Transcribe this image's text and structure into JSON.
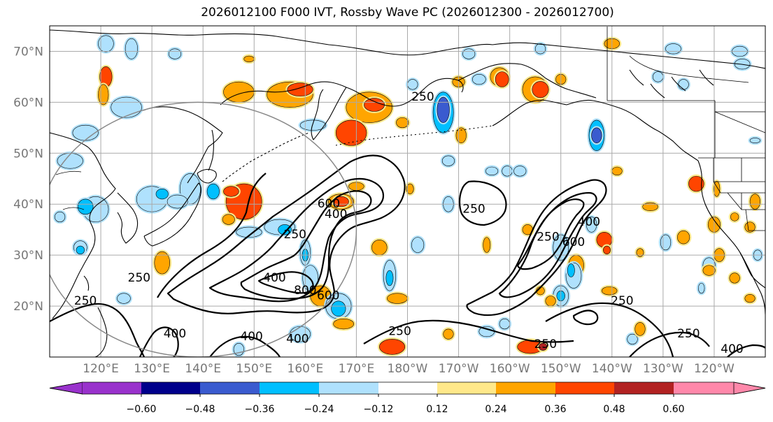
{
  "title": "2026012100 F000 IVT, Rossby Wave PC (2026012300 - 2026012700)",
  "colors": {
    "land_line": "#000000",
    "grid_line": "#aaaaaa",
    "circle_line": "#888888",
    "contour_line": "#000000"
  },
  "map": {
    "lon_range": [
      110,
      250
    ],
    "lat_range": [
      10,
      75
    ],
    "lat_ticks": [
      {
        "value": 20,
        "label": "20°N"
      },
      {
        "value": 30,
        "label": "30°N"
      },
      {
        "value": 40,
        "label": "40°N"
      },
      {
        "value": 50,
        "label": "50°N"
      },
      {
        "value": 60,
        "label": "60°N"
      },
      {
        "value": 70,
        "label": "70°N"
      }
    ],
    "lon_ticks": [
      {
        "value": 120,
        "label": "120°E"
      },
      {
        "value": 130,
        "label": "130°E"
      },
      {
        "value": 140,
        "label": "140°E"
      },
      {
        "value": 150,
        "label": "150°E"
      },
      {
        "value": 160,
        "label": "160°E"
      },
      {
        "value": 170,
        "label": "170°E"
      },
      {
        "value": 180,
        "label": "180°W"
      },
      {
        "value": 190,
        "label": "170°W"
      },
      {
        "value": 200,
        "label": "160°W"
      },
      {
        "value": 210,
        "label": "150°W"
      },
      {
        "value": 220,
        "label": "140°W"
      },
      {
        "value": 230,
        "label": "130°W"
      },
      {
        "value": 240,
        "label": "120°W"
      }
    ],
    "region_circle": {
      "center_lon": 139,
      "center_lat": 35,
      "radius_deg_lon": 31,
      "radius_deg_lat": 25
    }
  },
  "ivt_contours": {
    "levels": [
      "250",
      "400",
      "600",
      "800"
    ],
    "labels": [
      {
        "text": "250",
        "lon": 183.0,
        "lat": 61.0
      },
      {
        "text": "600",
        "lon": 164.6,
        "lat": 40.0
      },
      {
        "text": "400",
        "lon": 166.0,
        "lat": 38.0
      },
      {
        "text": "250",
        "lon": 158.0,
        "lat": 34.0
      },
      {
        "text": "250",
        "lon": 193.0,
        "lat": 39.0
      },
      {
        "text": "400",
        "lon": 154.0,
        "lat": 25.5
      },
      {
        "text": "800",
        "lon": 160.0,
        "lat": 23.0
      },
      {
        "text": "600",
        "lon": 164.5,
        "lat": 22.0
      },
      {
        "text": "250",
        "lon": 127.5,
        "lat": 25.5
      },
      {
        "text": "250",
        "lon": 117.0,
        "lat": 21.0
      },
      {
        "text": "400",
        "lon": 134.5,
        "lat": 14.5
      },
      {
        "text": "400",
        "lon": 149.5,
        "lat": 14.0
      },
      {
        "text": "400",
        "lon": 158.5,
        "lat": 13.5
      },
      {
        "text": "250",
        "lon": 178.5,
        "lat": 15.0
      },
      {
        "text": "250",
        "lon": 207.0,
        "lat": 12.5
      },
      {
        "text": "250",
        "lon": 222.0,
        "lat": 21.0
      },
      {
        "text": "250",
        "lon": 235.0,
        "lat": 14.5
      },
      {
        "text": "400",
        "lon": 243.5,
        "lat": 11.5
      },
      {
        "text": "250",
        "lon": 207.5,
        "lat": 33.5
      },
      {
        "text": "600",
        "lon": 212.5,
        "lat": 32.5
      },
      {
        "text": "400",
        "lon": 215.5,
        "lat": 36.5
      }
    ]
  },
  "colorbar": {
    "colors": [
      "#9932cc",
      "#00008b",
      "#3a5bcf",
      "#00bfff",
      "#afe1fd",
      "#ffffff",
      "#ffe88a",
      "#ffa500",
      "#ff4500",
      "#b22222",
      "#ff88aa"
    ],
    "boundaries": [
      "−0.60",
      "−0.48",
      "−0.36",
      "−0.24",
      "−0.12",
      "0.12",
      "0.24",
      "0.36",
      "0.48",
      "0.60"
    ]
  },
  "anomaly_blobs": [
    {
      "lon": 121,
      "lat": 71.5,
      "level": -1,
      "r": 1.5,
      "s": 1.6
    },
    {
      "lon": 126,
      "lat": 70.5,
      "level": -1,
      "r": 1.2,
      "s": 2
    },
    {
      "lon": 121,
      "lat": 65,
      "level": 3,
      "r": 1.2,
      "s": 2
    },
    {
      "lon": 120.5,
      "lat": 61.5,
      "level": 2,
      "r": 1.0,
      "s": 2
    },
    {
      "lon": 134.5,
      "lat": 69.5,
      "level": -1,
      "r": 1.2,
      "s": 1
    },
    {
      "lon": 147,
      "lat": 62,
      "level": 2,
      "r": 3,
      "s": 2
    },
    {
      "lon": 157,
      "lat": 61.5,
      "level": 2,
      "r": 4.5,
      "s": 2.5
    },
    {
      "lon": 159,
      "lat": 62.5,
      "level": 3,
      "r": 2.5,
      "s": 1.3
    },
    {
      "lon": 172.5,
      "lat": 59,
      "level": 2,
      "r": 4.5,
      "s": 3
    },
    {
      "lon": 173.5,
      "lat": 59.5,
      "level": 3,
      "r": 2,
      "s": 1.3
    },
    {
      "lon": 169,
      "lat": 54,
      "level": 3,
      "r": 3,
      "s": 2.5
    },
    {
      "lon": 179,
      "lat": 56,
      "level": 2,
      "r": 1.2,
      "s": 1
    },
    {
      "lon": 161.5,
      "lat": 55.5,
      "level": -1,
      "r": 2.5,
      "s": 1
    },
    {
      "lon": 187,
      "lat": 58,
      "level": -2,
      "r": 2,
      "s": 4
    },
    {
      "lon": 187,
      "lat": 58.5,
      "level": -3,
      "r": 1.2,
      "s": 2.5
    },
    {
      "lon": 181,
      "lat": 63.5,
      "level": -1,
      "r": 1,
      "s": 1
    },
    {
      "lon": 190,
      "lat": 64,
      "level": 2,
      "r": 1.2,
      "s": 1
    },
    {
      "lon": 198,
      "lat": 65,
      "level": 2,
      "r": 1.8,
      "s": 1.8
    },
    {
      "lon": 198.5,
      "lat": 64.5,
      "level": 3,
      "r": 1.3,
      "s": 1.5
    },
    {
      "lon": 194,
      "lat": 64.5,
      "level": -1,
      "r": 1.3,
      "s": 1
    },
    {
      "lon": 205,
      "lat": 62.5,
      "level": 2,
      "r": 2.5,
      "s": 2.5
    },
    {
      "lon": 206,
      "lat": 62.5,
      "level": 3,
      "r": 1.6,
      "s": 1.6
    },
    {
      "lon": 210,
      "lat": 64.5,
      "level": 2,
      "r": 1,
      "s": 1
    },
    {
      "lon": 206,
      "lat": 70.5,
      "level": -1,
      "r": 1,
      "s": 1
    },
    {
      "lon": 192,
      "lat": 69.5,
      "level": -1,
      "r": 1.2,
      "s": 1
    },
    {
      "lon": 190.5,
      "lat": 53.5,
      "level": 2,
      "r": 1,
      "s": 1.5
    },
    {
      "lon": 188,
      "lat": 48.5,
      "level": -1,
      "r": 1.2,
      "s": 1
    },
    {
      "lon": 217,
      "lat": 53.5,
      "level": -2,
      "r": 1.5,
      "s": 3
    },
    {
      "lon": 217,
      "lat": 53.5,
      "level": -3,
      "r": 1,
      "s": 1.5
    },
    {
      "lon": 229,
      "lat": 65,
      "level": -1,
      "r": 1,
      "s": 1
    },
    {
      "lon": 234,
      "lat": 63.5,
      "level": -1,
      "r": 1,
      "s": 1
    },
    {
      "lon": 125,
      "lat": 59,
      "level": -1,
      "r": 3,
      "s": 2
    },
    {
      "lon": 117,
      "lat": 54,
      "level": -1,
      "r": 2.5,
      "s": 1.5
    },
    {
      "lon": 114,
      "lat": 48.5,
      "level": -1,
      "r": 2.5,
      "s": 1.5
    },
    {
      "lon": 130,
      "lat": 41,
      "level": -1,
      "r": 3,
      "s": 2.5
    },
    {
      "lon": 132,
      "lat": 42,
      "level": -2,
      "r": 1.2,
      "s": 1
    },
    {
      "lon": 119,
      "lat": 39,
      "level": -1,
      "r": 2.5,
      "s": 2.5
    },
    {
      "lon": 117,
      "lat": 39.5,
      "level": -2,
      "r": 1.5,
      "s": 1.5
    },
    {
      "lon": 137.5,
      "lat": 43,
      "level": -1,
      "r": 2,
      "s": 3
    },
    {
      "lon": 135,
      "lat": 40.5,
      "level": -1,
      "r": 2,
      "s": 1.3
    },
    {
      "lon": 142,
      "lat": 42.5,
      "level": -2,
      "r": 1.2,
      "s": 1.5
    },
    {
      "lon": 148,
      "lat": 40.5,
      "level": 3,
      "r": 3.5,
      "s": 3.5
    },
    {
      "lon": 145.5,
      "lat": 42.5,
      "level": 3,
      "r": 1.5,
      "s": 1
    },
    {
      "lon": 145,
      "lat": 37,
      "level": 2,
      "r": 1.2,
      "s": 1
    },
    {
      "lon": 155,
      "lat": 35.5,
      "level": -1,
      "r": 3,
      "s": 1.5
    },
    {
      "lon": 149,
      "lat": 34.5,
      "level": -1,
      "r": 2.5,
      "s": 1
    },
    {
      "lon": 156,
      "lat": 35,
      "level": -2,
      "r": 1.3,
      "s": 1
    },
    {
      "lon": 116,
      "lat": 31.5,
      "level": -1,
      "r": 1.3,
      "s": 1.3
    },
    {
      "lon": 116,
      "lat": 31,
      "level": -2,
      "r": 0.8,
      "s": 0.8
    },
    {
      "lon": 132,
      "lat": 28.5,
      "level": 2,
      "r": 1.5,
      "s": 2.2
    },
    {
      "lon": 112,
      "lat": 37.5,
      "level": -1,
      "r": 1,
      "s": 1
    },
    {
      "lon": 160,
      "lat": 30.5,
      "level": -1,
      "r": 1,
      "s": 2.5
    },
    {
      "lon": 160,
      "lat": 30,
      "level": -2,
      "r": 0.6,
      "s": 1.2
    },
    {
      "lon": 161,
      "lat": 25.5,
      "level": -1,
      "r": 1.5,
      "s": 2.5
    },
    {
      "lon": 163,
      "lat": 22,
      "level": 2,
      "r": 2,
      "s": 2
    },
    {
      "lon": 166.5,
      "lat": 20,
      "level": -1,
      "r": 2.5,
      "s": 2.5
    },
    {
      "lon": 166.5,
      "lat": 19.5,
      "level": -2,
      "r": 1.4,
      "s": 1.5
    },
    {
      "lon": 167.5,
      "lat": 16.5,
      "level": 2,
      "r": 2,
      "s": 1
    },
    {
      "lon": 167,
      "lat": 40.5,
      "level": 2,
      "r": 2.5,
      "s": 1.5
    },
    {
      "lon": 167,
      "lat": 40.5,
      "level": 3,
      "r": 1.5,
      "s": 1
    },
    {
      "lon": 170,
      "lat": 43.5,
      "level": 2,
      "r": 1.5,
      "s": 0.8
    },
    {
      "lon": 174.5,
      "lat": 31.5,
      "level": 2,
      "r": 1.5,
      "s": 1.5
    },
    {
      "lon": 176.5,
      "lat": 26,
      "level": -1,
      "r": 1.2,
      "s": 3
    },
    {
      "lon": 176.5,
      "lat": 25.5,
      "level": -2,
      "r": 0.7,
      "s": 1.5
    },
    {
      "lon": 178,
      "lat": 21.5,
      "level": 2,
      "r": 2,
      "s": 1
    },
    {
      "lon": 180.5,
      "lat": 43,
      "level": 2,
      "r": 0.7,
      "s": 1
    },
    {
      "lon": 182,
      "lat": 32,
      "level": -1,
      "r": 1.2,
      "s": 1.5
    },
    {
      "lon": 188,
      "lat": 40,
      "level": -1,
      "r": 1,
      "s": 1.5
    },
    {
      "lon": 195.5,
      "lat": 32,
      "level": 2,
      "r": 0.7,
      "s": 1.5
    },
    {
      "lon": 196.5,
      "lat": 46.5,
      "level": -1,
      "r": 1.2,
      "s": 0.8
    },
    {
      "lon": 195.5,
      "lat": 15,
      "level": -1,
      "r": 1.5,
      "s": 1
    },
    {
      "lon": 199,
      "lat": 16.5,
      "level": -1,
      "r": 1,
      "s": 1
    },
    {
      "lon": 199.5,
      "lat": 46.5,
      "level": -1,
      "r": 1,
      "s": 1
    },
    {
      "lon": 202,
      "lat": 46.5,
      "level": -1,
      "r": 1.2,
      "s": 1
    },
    {
      "lon": 203.5,
      "lat": 35,
      "level": 2,
      "r": 1,
      "s": 1
    },
    {
      "lon": 210,
      "lat": 31.5,
      "level": -1,
      "r": 1.5,
      "s": 2.5
    },
    {
      "lon": 213,
      "lat": 28,
      "level": 2,
      "r": 1.5,
      "s": 2
    },
    {
      "lon": 212.5,
      "lat": 26,
      "level": -1,
      "r": 1.5,
      "s": 2.5
    },
    {
      "lon": 212,
      "lat": 27,
      "level": -2,
      "r": 0.7,
      "s": 1.3
    },
    {
      "lon": 210,
      "lat": 22,
      "level": -1,
      "r": 1.5,
      "s": 2
    },
    {
      "lon": 210,
      "lat": 22,
      "level": -2,
      "r": 0.8,
      "s": 1
    },
    {
      "lon": 208,
      "lat": 21,
      "level": 2,
      "r": 1,
      "s": 1
    },
    {
      "lon": 206,
      "lat": 23,
      "level": 2,
      "r": 0.8,
      "s": 0.8
    },
    {
      "lon": 218.5,
      "lat": 33,
      "level": 3,
      "r": 1.5,
      "s": 1.5
    },
    {
      "lon": 216,
      "lat": 36,
      "level": -1,
      "r": 1,
      "s": 1.5
    },
    {
      "lon": 219,
      "lat": 31,
      "level": 3,
      "r": 0.7,
      "s": 0.8
    },
    {
      "lon": 221,
      "lat": 46.5,
      "level": 2,
      "r": 1,
      "s": 0.8
    },
    {
      "lon": 227.5,
      "lat": 39.5,
      "level": 2,
      "r": 1.5,
      "s": 0.8
    },
    {
      "lon": 219.5,
      "lat": 23,
      "level": 2,
      "r": 1.5,
      "s": 0.8
    },
    {
      "lon": 225.5,
      "lat": 30.5,
      "level": 2,
      "r": 0.7,
      "s": 0.8
    },
    {
      "lon": 230.5,
      "lat": 32.5,
      "level": -1,
      "r": 1,
      "s": 1.5
    },
    {
      "lon": 234,
      "lat": 33.5,
      "level": 2,
      "r": 1.2,
      "s": 1.3
    },
    {
      "lon": 239,
      "lat": 28,
      "level": -1,
      "r": 1.2,
      "s": 1.5
    },
    {
      "lon": 241,
      "lat": 30,
      "level": 2,
      "r": 1,
      "s": 1.3
    },
    {
      "lon": 244,
      "lat": 25.5,
      "level": 2,
      "r": 1,
      "s": 1
    },
    {
      "lon": 247,
      "lat": 21.5,
      "level": 2,
      "r": 1,
      "s": 0.8
    },
    {
      "lon": 237.5,
      "lat": 23.5,
      "level": -1,
      "r": 0.6,
      "s": 1
    },
    {
      "lon": 239,
      "lat": 27,
      "level": 2,
      "r": 1.2,
      "s": 1
    },
    {
      "lon": 240.5,
      "lat": 43,
      "level": 2,
      "r": 0.6,
      "s": 1.5
    },
    {
      "lon": 240,
      "lat": 36,
      "level": 2,
      "r": 1.2,
      "s": 1.5
    },
    {
      "lon": 244,
      "lat": 37.5,
      "level": 2,
      "r": 0.8,
      "s": 0.8
    },
    {
      "lon": 247,
      "lat": 35.5,
      "level": 2,
      "r": 1,
      "s": 1
    },
    {
      "lon": 248,
      "lat": 40.5,
      "level": 2,
      "r": 1,
      "s": 1.5
    },
    {
      "lon": 248.5,
      "lat": 30,
      "level": -1,
      "r": 0.8,
      "s": 1
    },
    {
      "lon": 236.5,
      "lat": 44,
      "level": 3,
      "r": 1.5,
      "s": 1.5
    },
    {
      "lon": 220,
      "lat": 71.5,
      "level": 2,
      "r": 1.5,
      "s": 1
    },
    {
      "lon": 232,
      "lat": 70.5,
      "level": -1,
      "r": 1.5,
      "s": 1
    },
    {
      "lon": 245,
      "lat": 70,
      "level": -1,
      "r": 1.5,
      "s": 1
    },
    {
      "lon": 245.5,
      "lat": 67.5,
      "level": -1,
      "r": 1.5,
      "s": 1
    },
    {
      "lon": 248,
      "lat": 52.5,
      "level": -1,
      "r": 1,
      "s": 0.5
    },
    {
      "lon": 149,
      "lat": 68.5,
      "level": 2,
      "r": 1,
      "s": 0.6
    },
    {
      "lon": 204,
      "lat": 12,
      "level": 3,
      "r": 2.5,
      "s": 1.3
    },
    {
      "lon": 206.5,
      "lat": 12,
      "level": 4,
      "r": 0.8,
      "s": 0.7
    },
    {
      "lon": 177,
      "lat": 12,
      "level": 3,
      "r": 2.5,
      "s": 1.5
    },
    {
      "lon": 159,
      "lat": 14.5,
      "level": -1,
      "r": 2,
      "s": 1.5
    },
    {
      "lon": 147,
      "lat": 11.5,
      "level": -1,
      "r": 1,
      "s": 1.2
    },
    {
      "lon": 224,
      "lat": 13.5,
      "level": -1,
      "r": 1,
      "s": 1
    },
    {
      "lon": 225.5,
      "lat": 15.5,
      "level": 2,
      "r": 1,
      "s": 1.3
    },
    {
      "lon": 188,
      "lat": 14.5,
      "level": 2,
      "r": 1,
      "s": 1
    },
    {
      "lon": 124.5,
      "lat": 21.5,
      "level": -1,
      "r": 1.3,
      "s": 1
    }
  ]
}
